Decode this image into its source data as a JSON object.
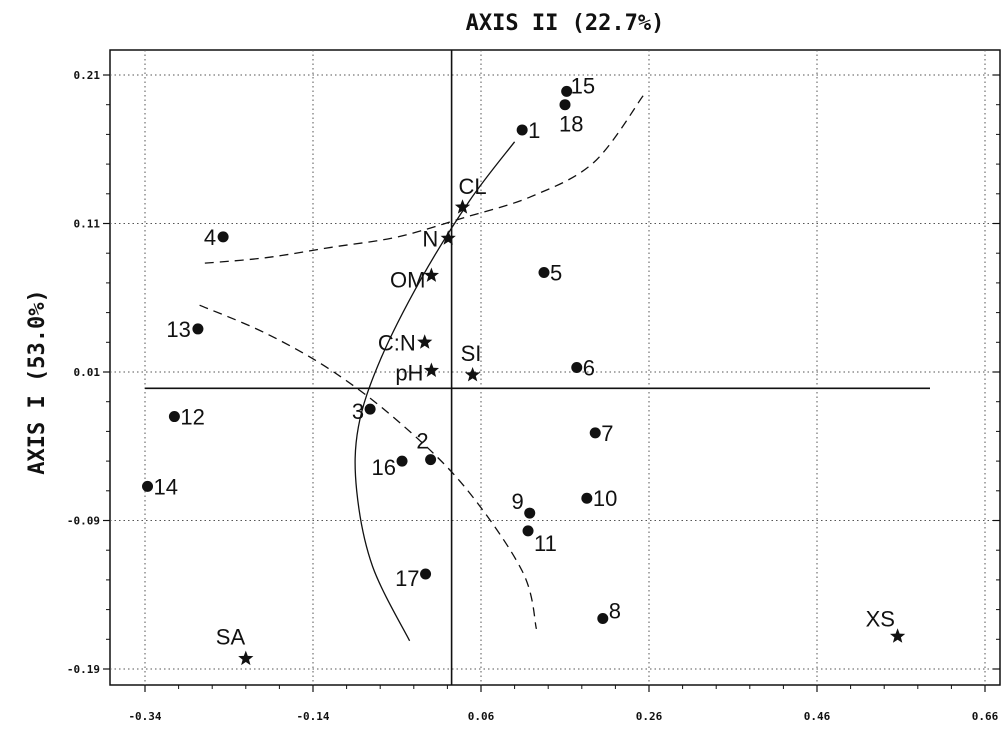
{
  "chart_data": {
    "type": "scatter",
    "title": "AXIS II (22.7%)",
    "xlabel": "",
    "ylabel": "AXIS I (53.0%)",
    "xlim": [
      -0.34,
      0.66
    ],
    "ylim": [
      -0.19,
      0.21
    ],
    "xticks": [
      "-0.34",
      "-0.14",
      "0.06",
      "0.26",
      "0.46",
      "0.66"
    ],
    "yticks": [
      "0.21",
      "0.11",
      "0.01",
      "-0.09",
      "-0.19"
    ],
    "grid": true,
    "reference_lines": {
      "vertical_x": 0.025,
      "horizontal_y": -0.001
    },
    "series": [
      {
        "marker": "circle",
        "points": [
          {
            "label": "1",
            "x": 0.109,
            "y": 0.173
          },
          {
            "label": "2",
            "x": 0.0,
            "y": -0.049
          },
          {
            "label": "3",
            "x": -0.072,
            "y": -0.015
          },
          {
            "label": "4",
            "x": -0.247,
            "y": 0.101
          },
          {
            "label": "5",
            "x": 0.135,
            "y": 0.077
          },
          {
            "label": "6",
            "x": 0.174,
            "y": 0.013
          },
          {
            "label": "7",
            "x": 0.196,
            "y": -0.031
          },
          {
            "label": "8",
            "x": 0.205,
            "y": -0.156
          },
          {
            "label": "9",
            "x": 0.118,
            "y": -0.085
          },
          {
            "label": "10",
            "x": 0.186,
            "y": -0.075
          },
          {
            "label": "11",
            "x": 0.116,
            "y": -0.097
          },
          {
            "label": "12",
            "x": -0.305,
            "y": -0.02
          },
          {
            "label": "13",
            "x": -0.277,
            "y": 0.039
          },
          {
            "label": "14",
            "x": -0.337,
            "y": -0.067
          },
          {
            "label": "15",
            "x": 0.162,
            "y": 0.199
          },
          {
            "label": "16",
            "x": -0.034,
            "y": -0.05
          },
          {
            "label": "17",
            "x": -0.006,
            "y": -0.126
          },
          {
            "label": "18",
            "x": 0.16,
            "y": 0.19
          }
        ]
      },
      {
        "marker": "star",
        "points": [
          {
            "label": "CL",
            "x": 0.038,
            "y": 0.121
          },
          {
            "label": "N",
            "x": 0.021,
            "y": 0.1
          },
          {
            "label": "OM",
            "x": 0.001,
            "y": 0.075
          },
          {
            "label": "C:N",
            "x": -0.007,
            "y": 0.03
          },
          {
            "label": "pH",
            "x": 0.001,
            "y": 0.011
          },
          {
            "label": "SI",
            "x": 0.05,
            "y": 0.008
          },
          {
            "label": "SA",
            "x": -0.22,
            "y": -0.183
          },
          {
            "label": "XS",
            "x": 0.556,
            "y": -0.168
          }
        ]
      }
    ],
    "curves": [
      {
        "style": "solid",
        "points": [
          [
            0.1,
            0.165
          ],
          [
            0.046,
            0.125
          ],
          [
            -0.012,
            0.072
          ],
          [
            -0.06,
            0.018
          ],
          [
            -0.086,
            -0.027
          ],
          [
            -0.088,
            -0.07
          ],
          [
            -0.069,
            -0.121
          ],
          [
            -0.025,
            -0.171
          ]
        ]
      },
      {
        "style": "dashed",
        "points": [
          [
            0.253,
            0.196
          ],
          [
            0.194,
            0.151
          ],
          [
            0.119,
            0.128
          ],
          [
            0.04,
            0.114
          ],
          [
            -0.039,
            0.101
          ],
          [
            -0.118,
            0.094
          ],
          [
            -0.196,
            0.087
          ],
          [
            -0.275,
            0.083
          ]
        ]
      },
      {
        "style": "dashed",
        "points": [
          [
            -0.275,
            0.055
          ],
          [
            -0.196,
            0.036
          ],
          [
            -0.118,
            0.011
          ],
          [
            -0.039,
            -0.023
          ],
          [
            0.04,
            -0.067
          ],
          [
            0.109,
            -0.124
          ],
          [
            0.126,
            -0.163
          ]
        ]
      }
    ]
  }
}
